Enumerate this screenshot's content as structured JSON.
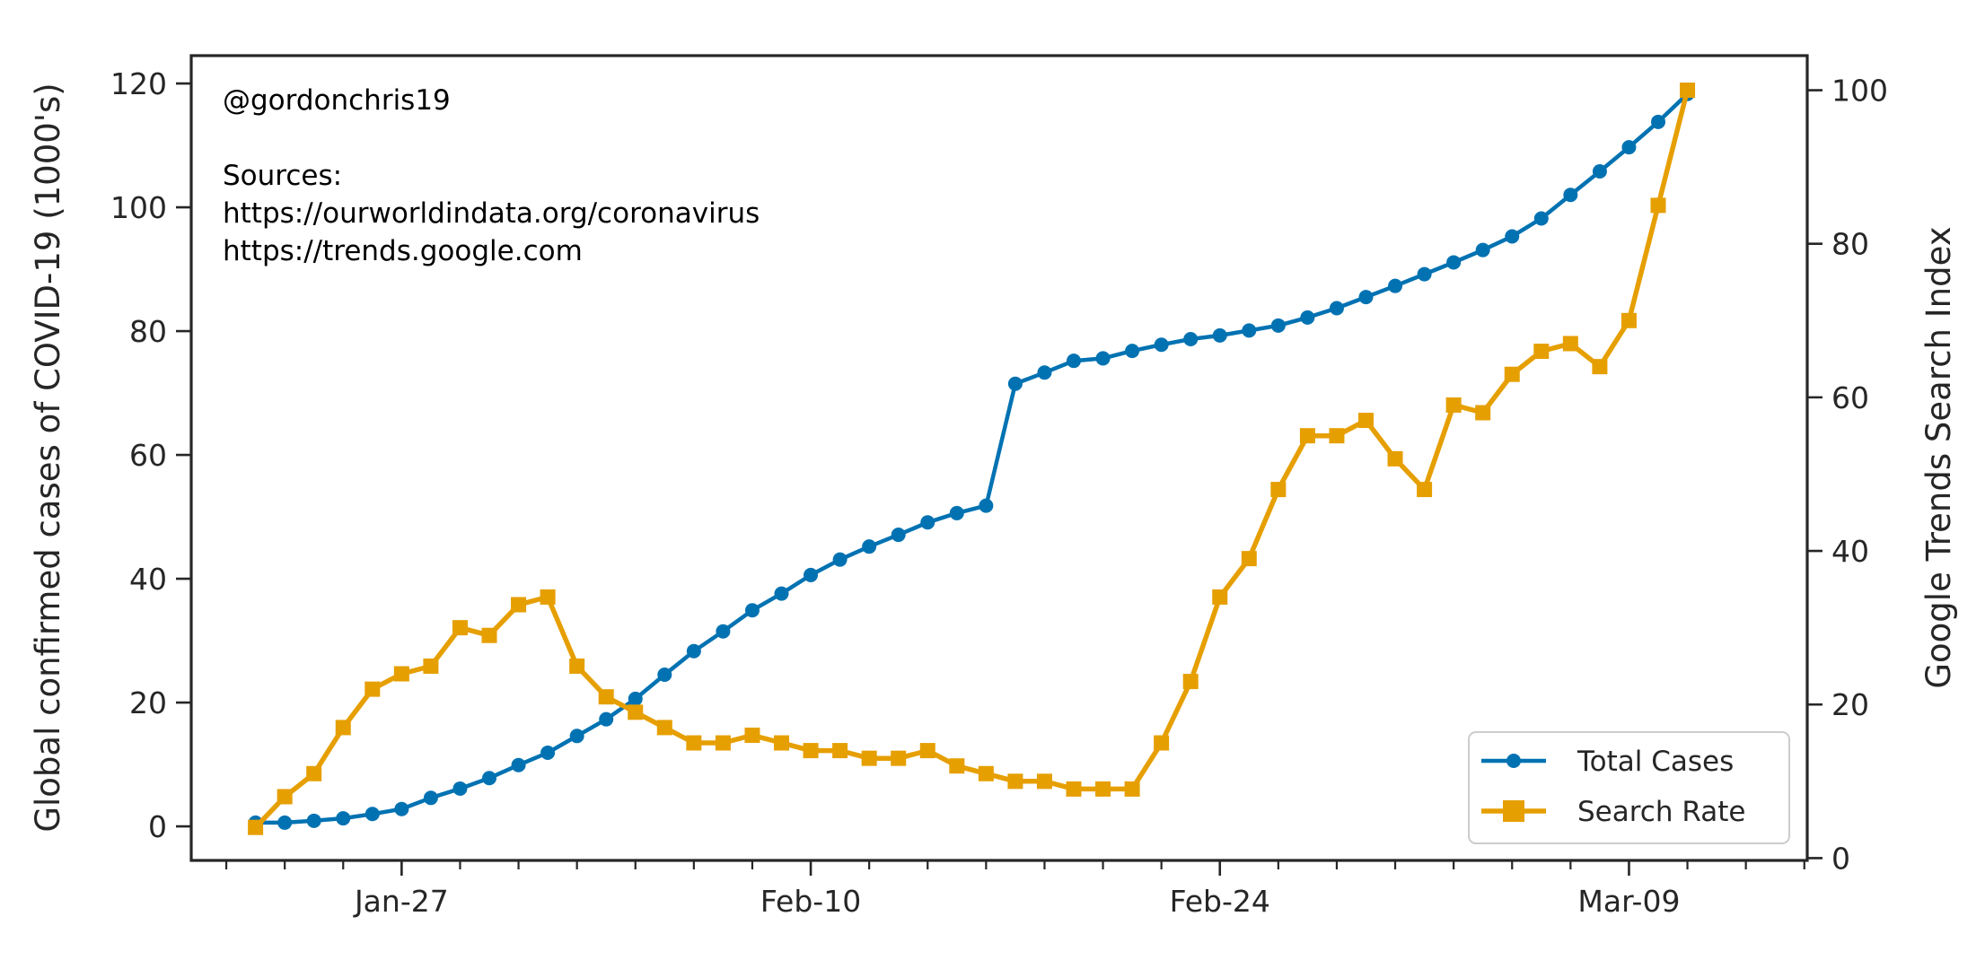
{
  "chart_data": {
    "type": "line",
    "x": [
      "2020-01-22",
      "2020-01-23",
      "2020-01-24",
      "2020-01-25",
      "2020-01-26",
      "2020-01-27",
      "2020-01-28",
      "2020-01-29",
      "2020-01-30",
      "2020-01-31",
      "2020-02-01",
      "2020-02-02",
      "2020-02-03",
      "2020-02-04",
      "2020-02-05",
      "2020-02-06",
      "2020-02-07",
      "2020-02-08",
      "2020-02-09",
      "2020-02-10",
      "2020-02-11",
      "2020-02-12",
      "2020-02-13",
      "2020-02-14",
      "2020-02-15",
      "2020-02-16",
      "2020-02-17",
      "2020-02-18",
      "2020-02-19",
      "2020-02-20",
      "2020-02-21",
      "2020-02-22",
      "2020-02-23",
      "2020-02-24",
      "2020-02-25",
      "2020-02-26",
      "2020-02-27",
      "2020-02-28",
      "2020-02-29",
      "2020-03-01",
      "2020-03-02",
      "2020-03-03",
      "2020-03-04",
      "2020-03-05",
      "2020-03-06",
      "2020-03-07",
      "2020-03-08",
      "2020-03-09",
      "2020-03-10",
      "2020-03-11"
    ],
    "xticks": [
      "Jan-27",
      "Feb-10",
      "Feb-24",
      "Mar-09"
    ],
    "xtick_dates": [
      "2020-01-27",
      "2020-02-10",
      "2020-02-24",
      "2020-03-09"
    ],
    "xlim": [
      "2020-01-19.8",
      "2020-03-15.1"
    ],
    "series": [
      {
        "name": "Total Cases",
        "axis": "left",
        "color": "#0072B2",
        "marker": "circle",
        "values": [
          0.6,
          0.6,
          0.9,
          1.3,
          2.0,
          2.8,
          4.6,
          6.1,
          7.8,
          9.9,
          11.9,
          14.6,
          17.3,
          20.6,
          24.5,
          28.3,
          31.5,
          34.9,
          37.6,
          40.6,
          43.1,
          45.2,
          47.1,
          49.1,
          50.6,
          51.8,
          71.5,
          73.3,
          75.2,
          75.6,
          76.8,
          77.8,
          78.7,
          79.3,
          80.1,
          80.9,
          82.2,
          83.7,
          85.5,
          87.3,
          89.2,
          91.1,
          93.1,
          95.3,
          98.2,
          102.0,
          105.8,
          109.7,
          113.8,
          118.3
        ]
      },
      {
        "name": "Search Rate",
        "axis": "right",
        "color": "#E69F00",
        "marker": "square",
        "values": [
          4,
          8,
          11,
          17,
          22,
          24,
          25,
          30,
          29,
          33,
          34,
          25,
          21,
          19,
          17,
          15,
          15,
          16,
          15,
          14,
          14,
          13,
          13,
          14,
          12,
          11,
          10,
          10,
          9,
          9,
          9,
          15,
          23,
          34,
          39,
          48,
          55,
          55,
          57,
          52,
          48,
          59,
          58,
          63,
          66,
          67,
          64,
          70,
          85,
          100
        ]
      }
    ],
    "ylabel": "Global confirmed cases of COVID-19 (1000's)",
    "ylabel_right": "Google Trends Search Index",
    "ylim": [
      -5.5,
      124.5
    ],
    "yticks": [
      0,
      20,
      40,
      60,
      80,
      100,
      120
    ],
    "ylim_right": [
      -0.3,
      104.5
    ],
    "yticks_right": [
      0,
      20,
      40,
      60,
      80,
      100
    ],
    "annotation": {
      "handle": "@gordonchris19",
      "sources_label": "Sources:",
      "source_1": "https://ourworldindata.org/coronavirus",
      "source_2": "https://trends.google.com"
    },
    "legend_position": "lower-right",
    "grid": false
  }
}
